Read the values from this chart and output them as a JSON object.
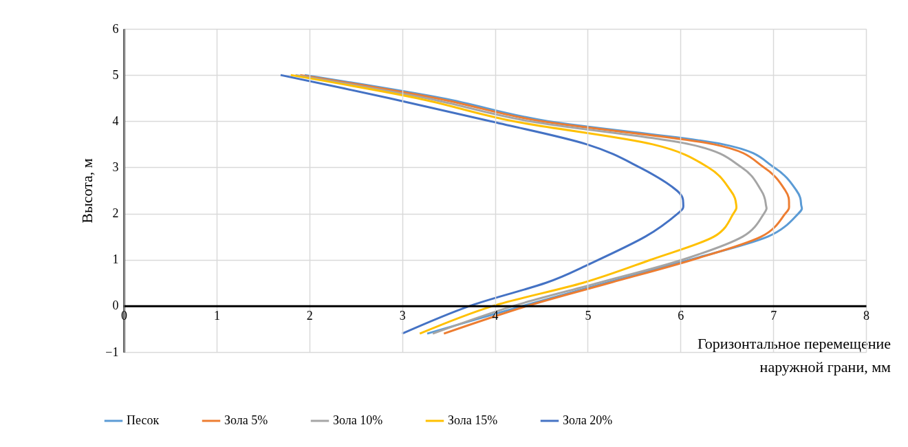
{
  "chart_data": {
    "type": "line",
    "xlabel": "Горизонтальное перемещение наружной грани, мм",
    "ylabel": "Высота, м",
    "xlim": [
      0,
      8
    ],
    "ylim": [
      -1,
      6
    ],
    "xticks": [
      0,
      1,
      2,
      3,
      4,
      5,
      6,
      7,
      8
    ],
    "yticks": [
      -1,
      0,
      1,
      2,
      3,
      4,
      5,
      6
    ],
    "grid": true,
    "legend": "bottom",
    "marker": "none",
    "line_style": "solid",
    "series": [
      {
        "name": "Песок",
        "color": "#5b9bd5",
        "x": [
          3.27,
          4.3,
          5.2,
          6.1,
          6.94,
          7.27,
          7.3,
          7.25,
          7.01,
          6.46,
          4.57,
          3.43,
          1.95
        ],
        "values": [
          -0.6,
          0,
          0.5,
          1,
          1.5,
          2,
          2.2,
          2.5,
          3,
          3.5,
          4,
          4.5,
          5
        ]
      },
      {
        "name": "Зола 5%",
        "color": "#ed7d31",
        "x": [
          3.45,
          4.35,
          5.24,
          6.13,
          6.87,
          7.13,
          7.17,
          7.13,
          6.9,
          6.36,
          4.5,
          3.36,
          1.9
        ],
        "values": [
          -0.6,
          0,
          0.5,
          1,
          1.5,
          2,
          2.2,
          2.5,
          3,
          3.5,
          4,
          4.5,
          5
        ]
      },
      {
        "name": "Зола 10%",
        "color": "#a5a5a5",
        "x": [
          3.33,
          4.2,
          5.12,
          6.02,
          6.67,
          6.9,
          6.92,
          6.87,
          6.66,
          6.1,
          4.37,
          3.26,
          1.85
        ],
        "values": [
          -0.6,
          0,
          0.5,
          1,
          1.5,
          2,
          2.2,
          2.5,
          3,
          3.5,
          4,
          4.5,
          5
        ]
      },
      {
        "name": "Зола 15%",
        "color": "#ffc000",
        "x": [
          3.19,
          3.98,
          4.95,
          5.68,
          6.36,
          6.57,
          6.6,
          6.54,
          6.3,
          5.7,
          4.2,
          3.16,
          1.8
        ],
        "values": [
          -0.6,
          0,
          0.5,
          1,
          1.5,
          2,
          2.2,
          2.5,
          3,
          3.5,
          4,
          4.5,
          5
        ]
      },
      {
        "name": "Зола 20%",
        "color": "#4472c4",
        "x": [
          3.0,
          3.73,
          4.55,
          5.0,
          5.62,
          5.97,
          6.03,
          5.96,
          5.56,
          4.99,
          3.95,
          2.86,
          1.69
        ],
        "values": [
          -0.6,
          0,
          0.5,
          0.89,
          1.5,
          2,
          2.2,
          2.5,
          3,
          3.5,
          4,
          4.5,
          5
        ]
      }
    ]
  }
}
